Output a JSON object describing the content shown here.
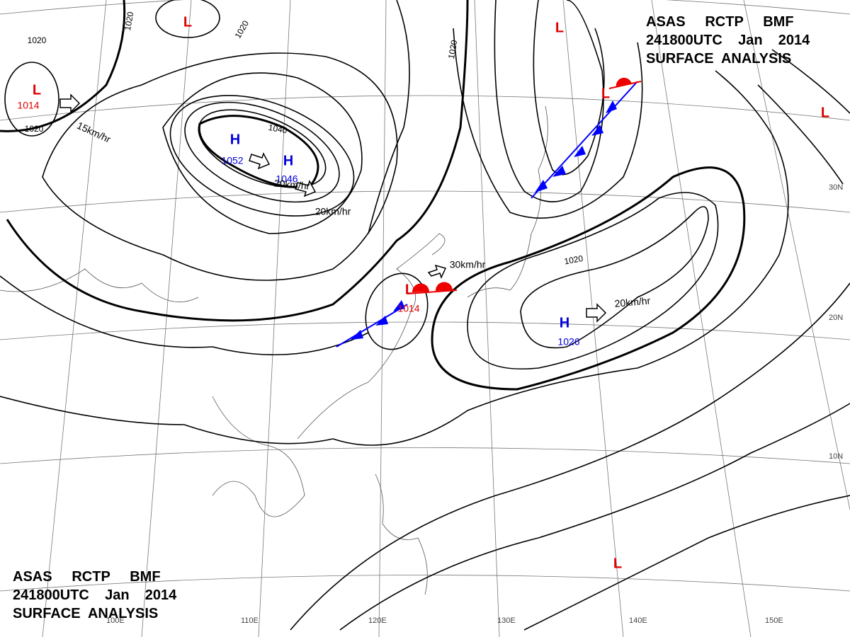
{
  "header_top": {
    "lines": [
      "ASAS     RCTP     BMF",
      "241800UTC    Jan    2014",
      "SURFACE  ANALYSIS"
    ]
  },
  "header_bottom": {
    "lines": [
      "ASAS     RCTP     BMF",
      "241800UTC    Jan    2014",
      "SURFACE  ANALYSIS"
    ]
  },
  "centers": [
    {
      "type": "L",
      "pressure": "1014"
    },
    {
      "type": "H",
      "pressure": "1052"
    },
    {
      "type": "H",
      "pressure": "1046"
    },
    {
      "type": "L",
      "pressure": "1014"
    },
    {
      "type": "H",
      "pressure": "1026"
    },
    {
      "type": "L"
    },
    {
      "type": "L"
    },
    {
      "type": "L"
    },
    {
      "type": "L"
    },
    {
      "type": "L"
    }
  ],
  "isobar_labels": [
    "1020",
    "1020",
    "1020",
    "1020",
    "1040",
    "1020",
    "1020"
  ],
  "motion_labels": [
    "15km/hr",
    "20km/hr",
    "20km/hr",
    "30km/hr",
    "20km/hr"
  ],
  "latitude_labels": [
    "30N",
    "20N",
    "10N"
  ],
  "longitude_labels": [
    "100E",
    "110E",
    "120E",
    "130E",
    "140E",
    "150E"
  ]
}
